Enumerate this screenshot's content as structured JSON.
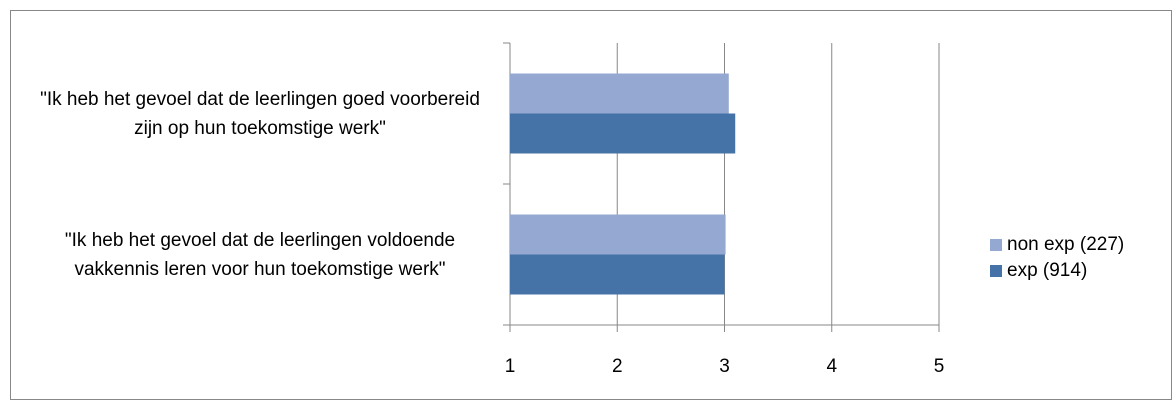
{
  "chart_data": {
    "type": "bar",
    "orientation": "horizontal",
    "categories": [
      "\"Ik heb het gevoel dat de leerlingen goed voorbereid zijn op hun toekomstige werk\"",
      "\"Ik heb het gevoel dat de leerlingen voldoende vakkennis leren voor hun toekomstige werk\""
    ],
    "series": [
      {
        "name": "non exp (227)",
        "color": "#95a8d1",
        "values": [
          3.04,
          3.01
        ]
      },
      {
        "name": "exp (914)",
        "color": "#4572a7",
        "values": [
          3.1,
          3.0
        ]
      }
    ],
    "xlim": [
      1,
      5
    ],
    "xticks": [
      1,
      2,
      3,
      4,
      5
    ],
    "grid": true,
    "legend": "right"
  }
}
